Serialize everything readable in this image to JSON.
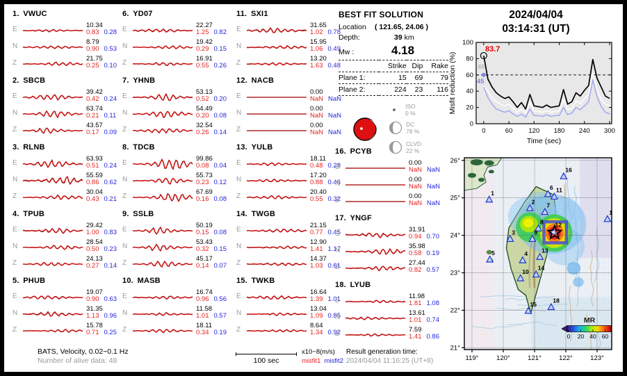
{
  "header": {
    "date": "2024/04/04",
    "time": "03:14:31  (UT)"
  },
  "best_fit": {
    "title": "BEST FIT SOLUTION",
    "location_label": "Location",
    "location_value": "( 121.65,  24.06 )",
    "depth_label": "Depth:",
    "depth_value": "39",
    "depth_unit": "km",
    "mw_label": "Mw :",
    "mw_value": "4.18",
    "table": {
      "headers": [
        "Strike",
        "Dip",
        "Rake"
      ],
      "rows": [
        {
          "label": "Plane 1:",
          "strike": "15",
          "dip": "69",
          "rake": "79"
        },
        {
          "label": "Plane 2:",
          "strike": "224",
          "dip": "23",
          "rake": "116"
        }
      ]
    },
    "decomposition": [
      {
        "name": "ISO",
        "pct": "0 %"
      },
      {
        "name": "DC",
        "pct": "78 %"
      },
      {
        "name": "CLVD",
        "pct": "22 %"
      }
    ],
    "beachball_color": "#dd1111"
  },
  "stations": [
    {
      "num": "1.",
      "code": "VWUC",
      "channels": [
        {
          "ch": "E",
          "amp": "10.34",
          "m1": "0.83",
          "m2": "0.28"
        },
        {
          "ch": "N",
          "amp": "8.79",
          "m1": "0.90",
          "m2": "0.53"
        },
        {
          "ch": "Z",
          "amp": "21.75",
          "m1": "0.25",
          "m2": "0.10"
        }
      ]
    },
    {
      "num": "2.",
      "code": "SBCB",
      "channels": [
        {
          "ch": "E",
          "amp": "39.42",
          "m1": "0.42",
          "m2": "0.24"
        },
        {
          "ch": "N",
          "amp": "63.74",
          "m1": "0.21",
          "m2": "0.11"
        },
        {
          "ch": "Z",
          "amp": "43.57",
          "m1": "0.17",
          "m2": "0.09"
        }
      ]
    },
    {
      "num": "3.",
      "code": "RLNB",
      "channels": [
        {
          "ch": "E",
          "amp": "63.93",
          "m1": "0.51",
          "m2": "0.24"
        },
        {
          "ch": "N",
          "amp": "55.59",
          "m1": "0.86",
          "m2": "0.62"
        },
        {
          "ch": "Z",
          "amp": "30.04",
          "m1": "0.43",
          "m2": "0.21"
        }
      ]
    },
    {
      "num": "4.",
      "code": "TPUB",
      "channels": [
        {
          "ch": "E",
          "amp": "29.42",
          "m1": "1.00",
          "m2": "0.83"
        },
        {
          "ch": "N",
          "amp": "28.54",
          "m1": "0.50",
          "m2": "0.23"
        },
        {
          "ch": "Z",
          "amp": "24.13",
          "m1": "0.27",
          "m2": "0.14"
        }
      ]
    },
    {
      "num": "5.",
      "code": "PHUB",
      "channels": [
        {
          "ch": "E",
          "amp": "19.07",
          "m1": "0.90",
          "m2": "0.63"
        },
        {
          "ch": "N",
          "amp": "31.35",
          "m1": "1.13",
          "m2": "0.96"
        },
        {
          "ch": "Z",
          "amp": "15.78",
          "m1": "0.71",
          "m2": "0.25"
        }
      ]
    },
    {
      "num": "6.",
      "code": "YD07",
      "channels": [
        {
          "ch": "E",
          "amp": "22.27",
          "m1": "1.25",
          "m2": "0.82"
        },
        {
          "ch": "N",
          "amp": "19.42",
          "m1": "0.29",
          "m2": "0.15"
        },
        {
          "ch": "Z",
          "amp": "16.91",
          "m1": "0.55",
          "m2": "0.26"
        }
      ]
    },
    {
      "num": "7.",
      "code": "YHNB",
      "channels": [
        {
          "ch": "E",
          "amp": "53.13",
          "m1": "0.52",
          "m2": "0.20"
        },
        {
          "ch": "N",
          "amp": "54.49",
          "m1": "0.20",
          "m2": "0.08"
        },
        {
          "ch": "Z",
          "amp": "32.54",
          "m1": "0.26",
          "m2": "0.14"
        }
      ]
    },
    {
      "num": "8.",
      "code": "TDCB",
      "channels": [
        {
          "ch": "E",
          "amp": "99.86",
          "m1": "0.08",
          "m2": "0.04"
        },
        {
          "ch": "N",
          "amp": "55.73",
          "m1": "0.23",
          "m2": "0.12"
        },
        {
          "ch": "Z",
          "amp": "67.69",
          "m1": "0.16",
          "m2": "0.08"
        }
      ]
    },
    {
      "num": "9.",
      "code": "SSLB",
      "channels": [
        {
          "ch": "E",
          "amp": "50.19",
          "m1": "0.15",
          "m2": "0.08"
        },
        {
          "ch": "N",
          "amp": "53.43",
          "m1": "0.32",
          "m2": "0.15"
        },
        {
          "ch": "Z",
          "amp": "45.17",
          "m1": "0.14",
          "m2": "0.07"
        }
      ]
    },
    {
      "num": "10.",
      "code": "MASB",
      "channels": [
        {
          "ch": "E",
          "amp": "16.74",
          "m1": "0.96",
          "m2": "0.56"
        },
        {
          "ch": "N",
          "amp": "11.58",
          "m1": "1.01",
          "m2": "0.57"
        },
        {
          "ch": "Z",
          "amp": "18.11",
          "m1": "0.34",
          "m2": "0.19"
        }
      ]
    },
    {
      "num": "11.",
      "code": "SXI1",
      "channels": [
        {
          "ch": "E",
          "amp": "31.65",
          "m1": "1.02",
          "m2": "0.78"
        },
        {
          "ch": "N",
          "amp": "15.95",
          "m1": "1.06",
          "m2": "0.49"
        },
        {
          "ch": "Z",
          "amp": "13.20",
          "m1": "1.63",
          "m2": "0.48"
        }
      ]
    },
    {
      "num": "12.",
      "code": "NACB",
      "channels": [
        {
          "ch": "E",
          "amp": "0.00",
          "m1": "NaN",
          "m2": "NaN"
        },
        {
          "ch": "N",
          "amp": "0.00",
          "m1": "NaN",
          "m2": "NaN"
        },
        {
          "ch": "Z",
          "amp": "0.00",
          "m1": "NaN",
          "m2": "NaN"
        }
      ]
    },
    {
      "num": "13.",
      "code": "YULB",
      "channels": [
        {
          "ch": "E",
          "amp": "18.11",
          "m1": "0.48",
          "m2": "0.28"
        },
        {
          "ch": "N",
          "amp": "17.20",
          "m1": "0.88",
          "m2": "0.46"
        },
        {
          "ch": "Z",
          "amp": "20.40",
          "m1": "0.55",
          "m2": "0.32"
        }
      ]
    },
    {
      "num": "14.",
      "code": "TWGB",
      "channels": [
        {
          "ch": "E",
          "amp": "21.15",
          "m1": "0.77",
          "m2": "0.45"
        },
        {
          "ch": "N",
          "amp": "12.90",
          "m1": "1.41",
          "m2": "1.17"
        },
        {
          "ch": "Z",
          "amp": "14.37",
          "m1": "1.03",
          "m2": "0.61"
        }
      ]
    },
    {
      "num": "15.",
      "code": "TWKB",
      "channels": [
        {
          "ch": "E",
          "amp": "16.64",
          "m1": "1.39",
          "m2": "1.01"
        },
        {
          "ch": "N",
          "amp": "13.04",
          "m1": "1.09",
          "m2": "0.85"
        },
        {
          "ch": "Z",
          "amp": "8.64",
          "m1": "1.34",
          "m2": "0.92"
        }
      ]
    },
    {
      "num": "16.",
      "code": "PCYB",
      "channels": [
        {
          "ch": "E",
          "amp": "0.00",
          "m1": "NaN",
          "m2": "NaN"
        },
        {
          "ch": "N",
          "amp": "0.00",
          "m1": "NaN",
          "m2": "NaN"
        },
        {
          "ch": "Z",
          "amp": "0.00",
          "m1": "NaN",
          "m2": "NaN"
        }
      ]
    },
    {
      "num": "17.",
      "code": "YNGF",
      "channels": [
        {
          "ch": "E",
          "amp": "31.91",
          "m1": "0.94",
          "m2": "0.70"
        },
        {
          "ch": "N",
          "amp": "35.98",
          "m1": "0.58",
          "m2": "0.19"
        },
        {
          "ch": "Z",
          "amp": "27.44",
          "m1": "0.82",
          "m2": "0.57"
        }
      ]
    },
    {
      "num": "18.",
      "code": "LYUB",
      "channels": [
        {
          "ch": "E",
          "amp": "11.98",
          "m1": "1.81",
          "m2": "1.08"
        },
        {
          "ch": "N",
          "amp": "13.61",
          "m1": "1.01",
          "m2": "0.74"
        },
        {
          "ch": "Z",
          "amp": "7.59",
          "m1": "1.41",
          "m2": "0.86"
        }
      ]
    }
  ],
  "footer": {
    "line1": "BATS, Velocity, 0.02−0.1 Hz",
    "line2": "Number of alive data: 48",
    "scalebar": "100 sec",
    "units": "x10−8(m/s)",
    "misfit1": "misfit1",
    "misfit2": "misfit2",
    "result_label": "Result generation time:",
    "result_value": "2024/04/04 11:16:25 (UT+8)"
  },
  "chart_data": {
    "type": "line",
    "title": "Misfit reduction vs inversion time",
    "xlabel": "Time (sec)",
    "ylabel": "Misfit reduction (%)",
    "xlim": [
      -18,
      305
    ],
    "ylim": [
      0,
      100
    ],
    "x_start": 0,
    "x_step": 10,
    "x_ticks": [
      0,
      60,
      120,
      180,
      240,
      300
    ],
    "y_ticks": [
      0,
      20,
      40,
      60,
      80,
      100
    ],
    "dashed_threshold": 60,
    "series": [
      {
        "name": "best-solution",
        "color": "#000000",
        "values": [
          83.7,
          55,
          45,
          38,
          34,
          31,
          33,
          27,
          20,
          26,
          18,
          36,
          22,
          21,
          20,
          23,
          20,
          21,
          22,
          42,
          24,
          27,
          38,
          34,
          41,
          47,
          79,
          56,
          45,
          34,
          31
        ]
      },
      {
        "name": "middle-solution",
        "color": "#ffffff",
        "values": [
          46,
          40,
          32,
          27,
          24,
          22,
          24,
          19,
          14,
          18,
          13,
          26,
          16,
          15,
          14,
          16,
          14,
          15,
          16,
          30,
          17,
          19,
          28,
          25,
          31,
          36,
          62,
          42,
          30,
          24,
          22
        ]
      },
      {
        "name": "low-solution",
        "color": "#a2a8f0",
        "values": [
          45,
          32,
          24,
          18,
          16,
          14,
          16,
          12,
          9,
          12,
          8,
          18,
          10,
          10,
          9,
          11,
          9,
          10,
          10,
          20,
          11,
          13,
          20,
          17,
          22,
          27,
          54,
          33,
          21,
          14,
          12
        ]
      }
    ],
    "annotations": [
      {
        "text": "83.7",
        "color": "#e60000"
      },
      {
        "text": "46",
        "color": "#a8a8a8"
      },
      {
        "text": "45",
        "color": "#7d86e0"
      }
    ],
    "legend_position": "none",
    "grid": false
  },
  "map": {
    "lat_ticks": [
      {
        "label": "26°",
        "value": 26
      },
      {
        "label": "25°",
        "value": 25
      },
      {
        "label": "24°",
        "value": 24
      },
      {
        "label": "23°",
        "value": 23
      },
      {
        "label": "22°",
        "value": 22
      },
      {
        "label": "21°",
        "value": 21
      }
    ],
    "lon_ticks": [
      {
        "label": "119°",
        "value": 119
      },
      {
        "label": "120°",
        "value": 120
      },
      {
        "label": "121°",
        "value": 121
      },
      {
        "label": "122°",
        "value": 122
      },
      {
        "label": "123°",
        "value": 123
      }
    ],
    "colorbar": {
      "title": "MR",
      "ticks": [
        "0",
        "20",
        "40",
        "60"
      ]
    },
    "epicenter": {
      "lon": 121.64,
      "lat": 24.07
    },
    "search_box": {
      "lon_min": 121.3,
      "lon_max": 122.02,
      "lat_min": 23.8,
      "lat_max": 24.36
    },
    "stations": [
      {
        "n": "1",
        "lon": 119.55,
        "lat": 24.95
      },
      {
        "n": "2",
        "lon": 120.85,
        "lat": 24.72
      },
      {
        "n": "3",
        "lon": 120.22,
        "lat": 23.9
      },
      {
        "n": "4",
        "lon": 120.62,
        "lat": 23.33
      },
      {
        "n": "5",
        "lon": 119.57,
        "lat": 23.35
      },
      {
        "n": "6",
        "lon": 121.43,
        "lat": 25.1
      },
      {
        "n": "7",
        "lon": 121.33,
        "lat": 24.62
      },
      {
        "n": "8",
        "lon": 121.12,
        "lat": 24.18
      },
      {
        "n": "9",
        "lon": 120.93,
        "lat": 23.9
      },
      {
        "n": "10",
        "lon": 120.55,
        "lat": 22.85
      },
      {
        "n": "11",
        "lon": 121.63,
        "lat": 25.03
      },
      {
        "n": "12",
        "lon": 121.6,
        "lat": 24.1
      },
      {
        "n": "13",
        "lon": 121.17,
        "lat": 23.42
      },
      {
        "n": "14",
        "lon": 121.05,
        "lat": 22.95
      },
      {
        "n": "15",
        "lon": 120.8,
        "lat": 21.98
      },
      {
        "n": "16",
        "lon": 121.93,
        "lat": 25.57
      },
      {
        "n": "17",
        "lon": 123.33,
        "lat": 24.43
      },
      {
        "n": "18",
        "lon": 121.53,
        "lat": 22.08
      }
    ]
  }
}
